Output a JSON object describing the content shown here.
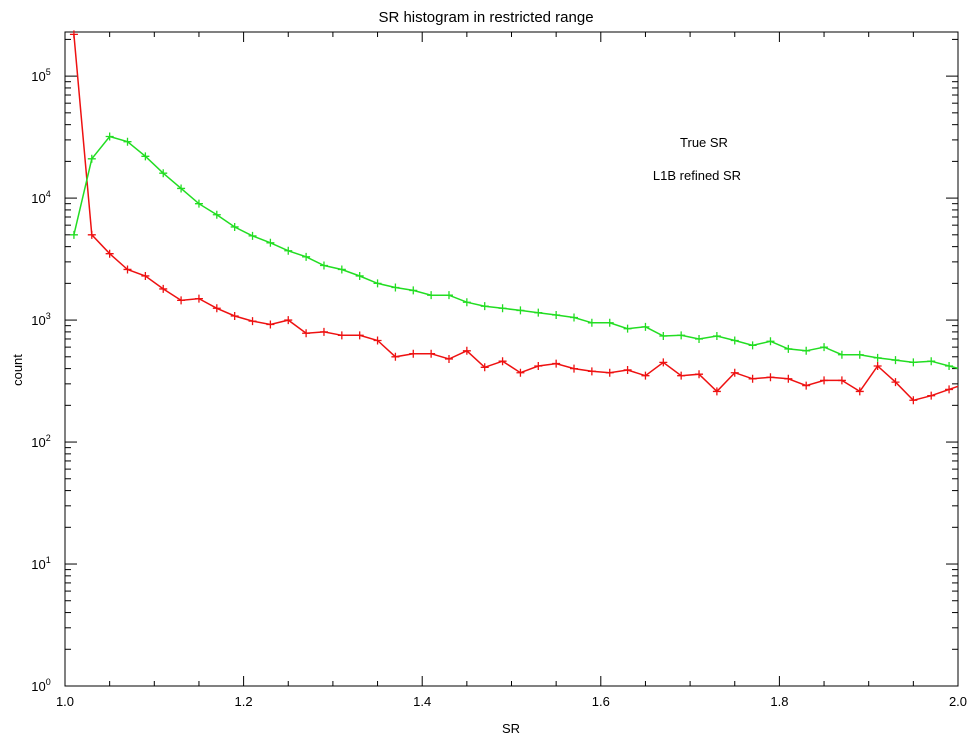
{
  "chart_data": {
    "type": "line",
    "title": "SR histogram in restricted range",
    "xlabel": "SR",
    "ylabel": "count",
    "xlim": [
      1.0,
      2.0
    ],
    "ylim": [
      1,
      230000
    ],
    "yscale": "log",
    "grid": false,
    "legend_position": "top-right",
    "x_ticks": [
      "1.0",
      "1.2",
      "1.4",
      "1.6",
      "1.8",
      "2.0"
    ],
    "y_ticks": [
      {
        "value": 1,
        "base": "10",
        "exp": "0"
      },
      {
        "value": 10,
        "base": "10",
        "exp": "1"
      },
      {
        "value": 100,
        "base": "10",
        "exp": "2"
      },
      {
        "value": 1000,
        "base": "10",
        "exp": "3"
      },
      {
        "value": 10000,
        "base": "10",
        "exp": "4"
      },
      {
        "value": 100000,
        "base": "10",
        "exp": "5"
      }
    ],
    "x": [
      1.01,
      1.03,
      1.05,
      1.07,
      1.09,
      1.11,
      1.13,
      1.15,
      1.17,
      1.19,
      1.21,
      1.23,
      1.25,
      1.27,
      1.29,
      1.31,
      1.33,
      1.35,
      1.37,
      1.39,
      1.41,
      1.43,
      1.45,
      1.47,
      1.49,
      1.51,
      1.53,
      1.55,
      1.57,
      1.59,
      1.61,
      1.63,
      1.65,
      1.67,
      1.69,
      1.71,
      1.73,
      1.75,
      1.77,
      1.79,
      1.81,
      1.83,
      1.85,
      1.87,
      1.89,
      1.91,
      1.93,
      1.95,
      1.97,
      1.99
    ],
    "series": [
      {
        "name": "True SR",
        "color": "#ee1111",
        "values": [
          220000,
          5000,
          3500,
          2600,
          2300,
          1800,
          1450,
          1500,
          1250,
          1080,
          980,
          920,
          1000,
          780,
          800,
          750,
          750,
          680,
          500,
          530,
          530,
          480,
          560,
          410,
          460,
          370,
          420,
          440,
          400,
          380,
          370,
          390,
          350,
          450,
          350,
          360,
          260,
          370,
          330,
          340,
          330,
          290,
          320,
          320,
          260,
          420,
          310,
          220,
          240,
          270
        ]
      },
      {
        "name": "L1B refined SR",
        "color": "#22dd22",
        "values": [
          5000,
          21000,
          32000,
          29000,
          22000,
          16000,
          12000,
          9000,
          7300,
          5800,
          4900,
          4300,
          3700,
          3300,
          2800,
          2600,
          2300,
          2000,
          1850,
          1750,
          1600,
          1600,
          1400,
          1300,
          1250,
          1200,
          1150,
          1100,
          1050,
          950,
          950,
          850,
          880,
          740,
          750,
          700,
          740,
          680,
          620,
          670,
          580,
          560,
          600,
          520,
          520,
          490,
          470,
          450,
          460,
          420
        ]
      }
    ]
  }
}
